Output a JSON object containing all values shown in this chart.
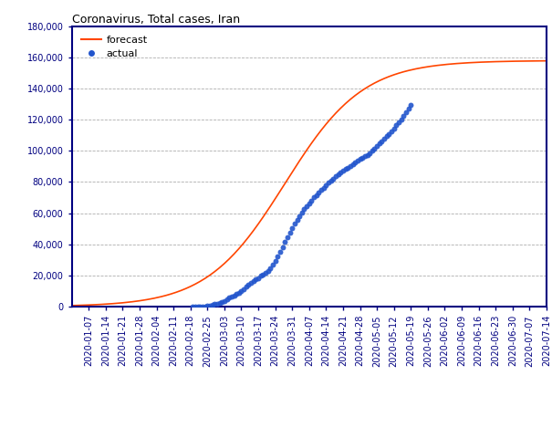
{
  "title": "Coronavirus, Total cases, Iran",
  "forecast_color": "#FF4500",
  "actual_dot_color": "#2255cc",
  "background_color": "#ffffff",
  "grid_color": "#999999",
  "axis_color": "#000080",
  "ylim": [
    0,
    180000
  ],
  "yticks": [
    0,
    20000,
    40000,
    60000,
    80000,
    100000,
    120000,
    140000,
    160000,
    180000
  ],
  "start_date": "2019-12-31",
  "end_date": "2020-07-14",
  "legend_forecast": "forecast",
  "legend_actual": "actual",
  "logistic_L": 158000,
  "logistic_k": 0.062,
  "logistic_x0_date": "2020-03-28",
  "actual_data": [
    [
      "2020-02-19",
      43
    ],
    [
      "2020-02-20",
      61
    ],
    [
      "2020-02-21",
      95
    ],
    [
      "2020-02-22",
      139
    ],
    [
      "2020-02-23",
      177
    ],
    [
      "2020-02-24",
      219
    ],
    [
      "2020-02-25",
      388
    ],
    [
      "2020-02-26",
      593
    ],
    [
      "2020-02-27",
      978
    ],
    [
      "2020-02-28",
      1501
    ],
    [
      "2020-02-29",
      1834
    ],
    [
      "2020-03-01",
      2336
    ],
    [
      "2020-03-02",
      2922
    ],
    [
      "2020-03-03",
      3513
    ],
    [
      "2020-03-04",
      4747
    ],
    [
      "2020-03-05",
      5823
    ],
    [
      "2020-03-06",
      6566
    ],
    [
      "2020-03-07",
      7161
    ],
    [
      "2020-03-08",
      8042
    ],
    [
      "2020-03-09",
      9000
    ],
    [
      "2020-03-10",
      10075
    ],
    [
      "2020-03-11",
      11364
    ],
    [
      "2020-03-12",
      12729
    ],
    [
      "2020-03-13",
      13938
    ],
    [
      "2020-03-14",
      14991
    ],
    [
      "2020-03-15",
      16169
    ],
    [
      "2020-03-16",
      17361
    ],
    [
      "2020-03-17",
      18407
    ],
    [
      "2020-03-18",
      19644
    ],
    [
      "2020-03-19",
      20610
    ],
    [
      "2020-03-20",
      21638
    ],
    [
      "2020-03-21",
      23049
    ],
    [
      "2020-03-22",
      24811
    ],
    [
      "2020-03-23",
      27017
    ],
    [
      "2020-03-24",
      29406
    ],
    [
      "2020-03-25",
      32332
    ],
    [
      "2020-03-26",
      35408
    ],
    [
      "2020-03-27",
      38309
    ],
    [
      "2020-03-28",
      41495
    ],
    [
      "2020-03-29",
      44606
    ],
    [
      "2020-03-30",
      47593
    ],
    [
      "2020-03-31",
      50468
    ],
    [
      "2020-04-01",
      53183
    ],
    [
      "2020-04-02",
      55743
    ],
    [
      "2020-04-03",
      58226
    ],
    [
      "2020-04-04",
      60500
    ],
    [
      "2020-04-05",
      62589
    ],
    [
      "2020-04-06",
      64586
    ],
    [
      "2020-04-07",
      66220
    ],
    [
      "2020-04-08",
      68192
    ],
    [
      "2020-04-09",
      70029
    ],
    [
      "2020-04-10",
      71686
    ],
    [
      "2020-04-11",
      73303
    ],
    [
      "2020-04-12",
      74877
    ],
    [
      "2020-04-13",
      76389
    ],
    [
      "2020-04-14",
      77995
    ],
    [
      "2020-04-15",
      79494
    ],
    [
      "2020-04-16",
      80868
    ],
    [
      "2020-04-17",
      82211
    ],
    [
      "2020-04-18",
      83505
    ],
    [
      "2020-04-19",
      84802
    ],
    [
      "2020-04-20",
      85996
    ],
    [
      "2020-04-21",
      87026
    ],
    [
      "2020-04-22",
      88194
    ],
    [
      "2020-04-23",
      89328
    ],
    [
      "2020-04-24",
      90481
    ],
    [
      "2020-04-25",
      91472
    ],
    [
      "2020-04-26",
      92584
    ],
    [
      "2020-04-27",
      93657
    ],
    [
      "2020-04-28",
      94640
    ],
    [
      "2020-04-29",
      95646
    ],
    [
      "2020-04-30",
      96448
    ],
    [
      "2020-05-01",
      97424
    ],
    [
      "2020-05-02",
      98647
    ],
    [
      "2020-05-03",
      99970
    ],
    [
      "2020-05-04",
      101650
    ],
    [
      "2020-05-05",
      103135
    ],
    [
      "2020-05-06",
      104691
    ],
    [
      "2020-05-07",
      106220
    ],
    [
      "2020-05-08",
      107603
    ],
    [
      "2020-05-09",
      109286
    ],
    [
      "2020-05-10",
      110767
    ],
    [
      "2020-05-11",
      112725
    ],
    [
      "2020-05-12",
      114533
    ],
    [
      "2020-05-13",
      116635
    ],
    [
      "2020-05-14",
      118392
    ],
    [
      "2020-05-15",
      120198
    ],
    [
      "2020-05-16",
      122492
    ],
    [
      "2020-05-17",
      124603
    ],
    [
      "2020-05-18",
      126949
    ],
    [
      "2020-05-19",
      129341
    ]
  ]
}
